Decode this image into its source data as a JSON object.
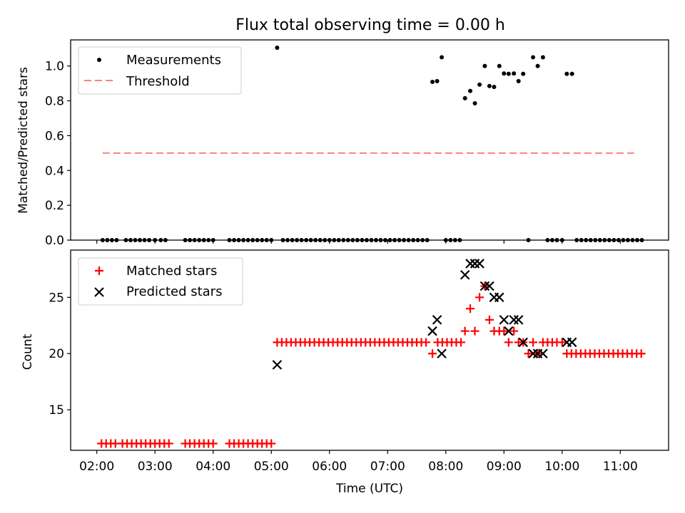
{
  "title": "Flux total observing time = 0.00 h",
  "chart_data": [
    {
      "type": "scatter",
      "title": "Flux total observing time = 0.00 h",
      "xlabel": "",
      "ylabel": "Matched/Predicted stars",
      "xlim": [
        1.55,
        11.83
      ],
      "ylim": [
        0.0,
        1.15
      ],
      "yticks": [
        0.0,
        0.2,
        0.4,
        0.6,
        0.8,
        1.0
      ],
      "ytick_labels": [
        "0.0",
        "0.2",
        "0.4",
        "0.6",
        "0.8",
        "1.0"
      ],
      "xticks": [
        2,
        3,
        4,
        5,
        6,
        7,
        8,
        9,
        10,
        11
      ],
      "legend_loc": "upper-left",
      "series": [
        {
          "name": "Measurements",
          "marker": "dot",
          "color": "#000000",
          "points": [
            [
              2.1,
              0
            ],
            [
              2.18,
              0
            ],
            [
              2.26,
              0
            ],
            [
              2.34,
              0
            ],
            [
              2.5,
              0
            ],
            [
              2.58,
              0
            ],
            [
              2.66,
              0
            ],
            [
              2.74,
              0
            ],
            [
              2.82,
              0
            ],
            [
              2.9,
              0
            ],
            [
              3.0,
              0
            ],
            [
              3.1,
              0
            ],
            [
              3.18,
              0
            ],
            [
              3.52,
              0
            ],
            [
              3.6,
              0
            ],
            [
              3.68,
              0
            ],
            [
              3.76,
              0
            ],
            [
              3.84,
              0
            ],
            [
              3.92,
              0
            ],
            [
              4.0,
              0
            ],
            [
              4.28,
              0
            ],
            [
              4.36,
              0
            ],
            [
              4.44,
              0
            ],
            [
              4.52,
              0
            ],
            [
              4.6,
              0
            ],
            [
              4.68,
              0
            ],
            [
              4.76,
              0
            ],
            [
              4.84,
              0
            ],
            [
              4.92,
              0
            ],
            [
              5.0,
              0
            ],
            [
              5.1,
              1.105
            ],
            [
              5.2,
              0
            ],
            [
              5.28,
              0
            ],
            [
              5.36,
              0
            ],
            [
              5.44,
              0
            ],
            [
              5.52,
              0
            ],
            [
              5.6,
              0
            ],
            [
              5.68,
              0
            ],
            [
              5.76,
              0
            ],
            [
              5.84,
              0
            ],
            [
              5.92,
              0
            ],
            [
              6.0,
              0
            ],
            [
              6.08,
              0
            ],
            [
              6.16,
              0
            ],
            [
              6.24,
              0
            ],
            [
              6.32,
              0
            ],
            [
              6.4,
              0
            ],
            [
              6.48,
              0
            ],
            [
              6.56,
              0
            ],
            [
              6.64,
              0
            ],
            [
              6.72,
              0
            ],
            [
              6.8,
              0
            ],
            [
              6.88,
              0
            ],
            [
              6.96,
              0
            ],
            [
              7.04,
              0
            ],
            [
              7.12,
              0
            ],
            [
              7.2,
              0
            ],
            [
              7.28,
              0
            ],
            [
              7.36,
              0
            ],
            [
              7.44,
              0
            ],
            [
              7.52,
              0
            ],
            [
              7.6,
              0
            ],
            [
              7.68,
              0
            ],
            [
              7.77,
              0.909
            ],
            [
              7.85,
              0.913
            ],
            [
              7.93,
              1.05
            ],
            [
              8.0,
              0
            ],
            [
              8.08,
              0
            ],
            [
              8.16,
              0
            ],
            [
              8.24,
              0
            ],
            [
              8.33,
              0.815
            ],
            [
              8.42,
              0.857
            ],
            [
              8.5,
              0.786
            ],
            [
              8.58,
              0.893
            ],
            [
              8.67,
              1.0
            ],
            [
              8.75,
              0.885
            ],
            [
              8.83,
              0.88
            ],
            [
              8.92,
              1.0
            ],
            [
              9.0,
              0.957
            ],
            [
              9.08,
              0.955
            ],
            [
              9.17,
              0.957
            ],
            [
              9.25,
              0.913
            ],
            [
              9.33,
              0.955
            ],
            [
              9.42,
              0
            ],
            [
              9.5,
              1.05
            ],
            [
              9.58,
              1.0
            ],
            [
              9.67,
              1.05
            ],
            [
              9.75,
              0
            ],
            [
              9.83,
              0
            ],
            [
              9.91,
              0
            ],
            [
              10.0,
              0
            ],
            [
              10.08,
              0.955
            ],
            [
              10.17,
              0.955
            ],
            [
              10.25,
              0
            ],
            [
              10.33,
              0
            ],
            [
              10.41,
              0
            ],
            [
              10.49,
              0
            ],
            [
              10.57,
              0
            ],
            [
              10.65,
              0
            ],
            [
              10.73,
              0
            ],
            [
              10.81,
              0
            ],
            [
              10.89,
              0
            ],
            [
              10.97,
              0
            ],
            [
              11.05,
              0
            ],
            [
              11.13,
              0
            ],
            [
              11.21,
              0
            ],
            [
              11.29,
              0
            ],
            [
              11.37,
              0
            ]
          ]
        },
        {
          "name": "Threshold",
          "marker": "dashed-line",
          "color": "#ff7f7f",
          "points": [
            [
              2.1,
              0.5
            ],
            [
              11.3,
              0.5
            ]
          ]
        }
      ]
    },
    {
      "type": "scatter",
      "title": "",
      "xlabel": "Time (UTC)",
      "ylabel": "Count",
      "xlim": [
        1.55,
        11.83
      ],
      "ylim": [
        11.4,
        29.2
      ],
      "yticks": [
        15,
        20,
        25
      ],
      "ytick_labels": [
        "15",
        "20",
        "25"
      ],
      "xticks": [
        2,
        3,
        4,
        5,
        6,
        7,
        8,
        9,
        10,
        11
      ],
      "xtick_labels": [
        "02:00",
        "03:00",
        "04:00",
        "05:00",
        "06:00",
        "07:00",
        "08:00",
        "09:00",
        "10:00",
        "11:00"
      ],
      "legend_loc": "upper-left",
      "series": [
        {
          "name": "Matched stars",
          "marker": "plus",
          "color": "#ff0000",
          "points": [
            [
              2.08,
              12
            ],
            [
              2.16,
              12
            ],
            [
              2.24,
              12
            ],
            [
              2.32,
              12
            ],
            [
              2.44,
              12
            ],
            [
              2.52,
              12
            ],
            [
              2.6,
              12
            ],
            [
              2.68,
              12
            ],
            [
              2.76,
              12
            ],
            [
              2.84,
              12
            ],
            [
              2.92,
              12
            ],
            [
              3.0,
              12
            ],
            [
              3.08,
              12
            ],
            [
              3.16,
              12
            ],
            [
              3.24,
              12
            ],
            [
              3.52,
              12
            ],
            [
              3.6,
              12
            ],
            [
              3.68,
              12
            ],
            [
              3.76,
              12
            ],
            [
              3.84,
              12
            ],
            [
              3.92,
              12
            ],
            [
              4.0,
              12
            ],
            [
              4.28,
              12
            ],
            [
              4.36,
              12
            ],
            [
              4.44,
              12
            ],
            [
              4.52,
              12
            ],
            [
              4.6,
              12
            ],
            [
              4.68,
              12
            ],
            [
              4.76,
              12
            ],
            [
              4.84,
              12
            ],
            [
              4.92,
              12
            ],
            [
              5.0,
              12
            ],
            [
              5.1,
              21
            ],
            [
              5.18,
              21
            ],
            [
              5.26,
              21
            ],
            [
              5.34,
              21
            ],
            [
              5.42,
              21
            ],
            [
              5.5,
              21
            ],
            [
              5.58,
              21
            ],
            [
              5.66,
              21
            ],
            [
              5.74,
              21
            ],
            [
              5.82,
              21
            ],
            [
              5.9,
              21
            ],
            [
              5.98,
              21
            ],
            [
              6.06,
              21
            ],
            [
              6.14,
              21
            ],
            [
              6.22,
              21
            ],
            [
              6.3,
              21
            ],
            [
              6.38,
              21
            ],
            [
              6.46,
              21
            ],
            [
              6.54,
              21
            ],
            [
              6.62,
              21
            ],
            [
              6.7,
              21
            ],
            [
              6.78,
              21
            ],
            [
              6.86,
              21
            ],
            [
              6.94,
              21
            ],
            [
              7.02,
              21
            ],
            [
              7.1,
              21
            ],
            [
              7.18,
              21
            ],
            [
              7.26,
              21
            ],
            [
              7.34,
              21
            ],
            [
              7.42,
              21
            ],
            [
              7.5,
              21
            ],
            [
              7.58,
              21
            ],
            [
              7.66,
              21
            ],
            [
              7.77,
              20
            ],
            [
              7.86,
              21
            ],
            [
              7.94,
              21
            ],
            [
              8.02,
              21
            ],
            [
              8.1,
              21
            ],
            [
              8.18,
              21
            ],
            [
              8.26,
              21
            ],
            [
              8.33,
              22
            ],
            [
              8.42,
              24
            ],
            [
              8.5,
              22
            ],
            [
              8.58,
              25
            ],
            [
              8.67,
              26
            ],
            [
              8.75,
              23
            ],
            [
              8.83,
              22
            ],
            [
              8.92,
              22
            ],
            [
              9.0,
              22
            ],
            [
              9.08,
              21
            ],
            [
              9.17,
              22
            ],
            [
              9.25,
              21
            ],
            [
              9.33,
              21
            ],
            [
              9.42,
              20
            ],
            [
              9.5,
              21
            ],
            [
              9.58,
              20
            ],
            [
              9.67,
              21
            ],
            [
              9.75,
              21
            ],
            [
              9.83,
              21
            ],
            [
              9.91,
              21
            ],
            [
              10.0,
              21
            ],
            [
              10.08,
              20
            ],
            [
              10.16,
              20
            ],
            [
              10.24,
              20
            ],
            [
              10.32,
              20
            ],
            [
              10.4,
              20
            ],
            [
              10.48,
              20
            ],
            [
              10.56,
              20
            ],
            [
              10.64,
              20
            ],
            [
              10.72,
              20
            ],
            [
              10.8,
              20
            ],
            [
              10.88,
              20
            ],
            [
              10.96,
              20
            ],
            [
              11.04,
              20
            ],
            [
              11.12,
              20
            ],
            [
              11.2,
              20
            ],
            [
              11.28,
              20
            ],
            [
              11.36,
              20
            ]
          ]
        },
        {
          "name": "Predicted stars",
          "marker": "x",
          "color": "#000000",
          "points": [
            [
              5.1,
              19
            ],
            [
              7.77,
              22
            ],
            [
              7.85,
              23
            ],
            [
              7.93,
              20
            ],
            [
              8.33,
              27
            ],
            [
              8.42,
              28
            ],
            [
              8.5,
              28
            ],
            [
              8.58,
              28
            ],
            [
              8.67,
              26
            ],
            [
              8.75,
              26
            ],
            [
              8.83,
              25
            ],
            [
              8.92,
              25
            ],
            [
              9.0,
              23
            ],
            [
              9.08,
              22
            ],
            [
              9.17,
              23
            ],
            [
              9.25,
              23
            ],
            [
              9.33,
              21
            ],
            [
              9.5,
              20
            ],
            [
              9.58,
              20
            ],
            [
              9.67,
              20
            ],
            [
              10.08,
              21
            ],
            [
              10.17,
              21
            ]
          ]
        }
      ]
    }
  ]
}
